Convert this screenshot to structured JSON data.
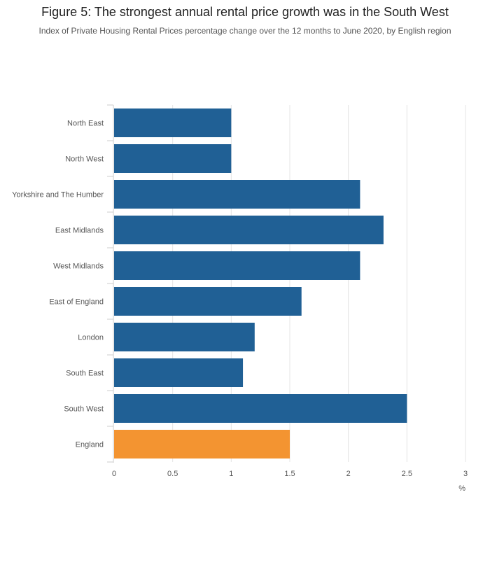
{
  "chart_data": {
    "type": "bar",
    "orientation": "horizontal",
    "title": "Figure 5: The strongest annual rental price growth was in the South West",
    "subtitle": "Index of Private Housing Rental Prices percentage change over the 12 months to June 2020, by English region",
    "categories": [
      "North East",
      "North West",
      "Yorkshire and The Humber",
      "East Midlands",
      "West Midlands",
      "East of England",
      "London",
      "South East",
      "South West",
      "England"
    ],
    "values": [
      1.0,
      1.0,
      2.1,
      2.3,
      2.1,
      1.6,
      1.2,
      1.1,
      2.5,
      1.5
    ],
    "highlight_category": "England",
    "colors": {
      "default": "#206095",
      "highlight": "#f39431"
    },
    "xlim": [
      0,
      3
    ],
    "xticks": [
      0,
      0.5,
      1,
      1.5,
      2,
      2.5,
      3
    ],
    "xtick_labels": [
      "0",
      "0.5",
      "1",
      "1.5",
      "2",
      "2.5",
      "3"
    ],
    "xlabel": "%",
    "grid": true
  }
}
